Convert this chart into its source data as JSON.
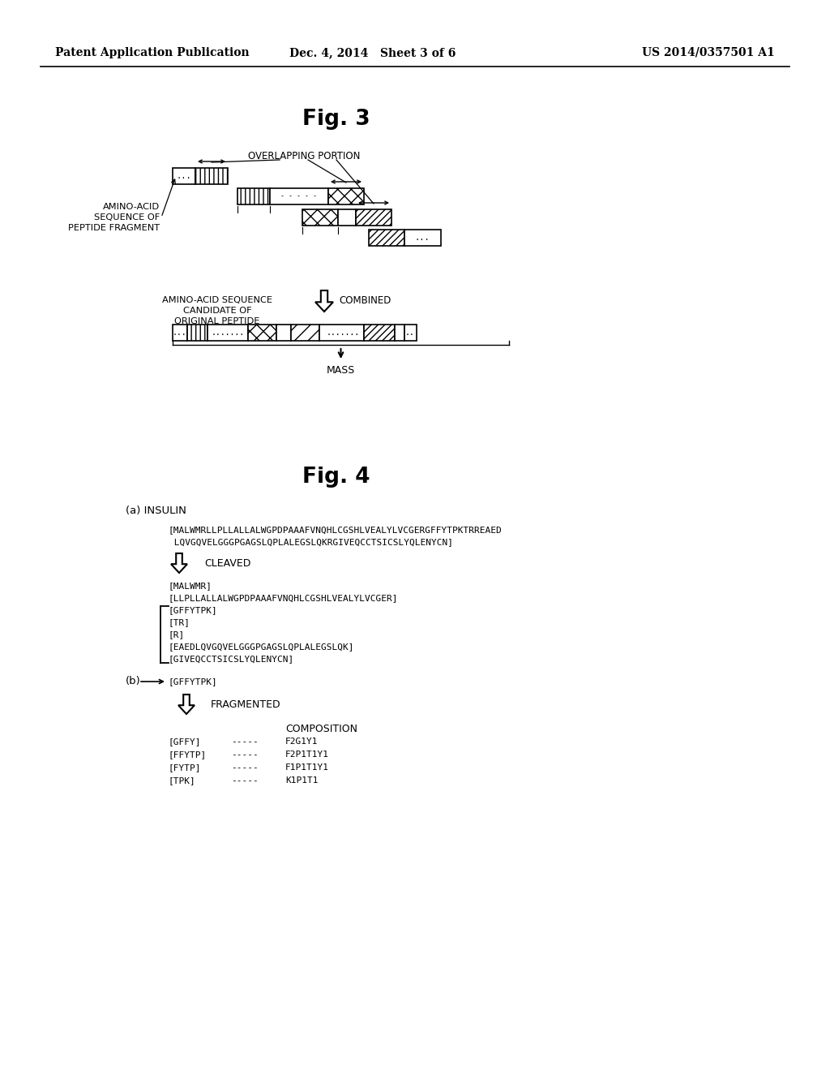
{
  "header_left": "Patent Application Publication",
  "header_mid": "Dec. 4, 2014   Sheet 3 of 6",
  "header_right": "US 2014/0357501 A1",
  "fig3_title": "Fig. 3",
  "fig4_title": "Fig. 4",
  "bg_color": "#ffffff",
  "text_color": "#000000",
  "fig3_overlapping": "OVERLAPPING PORTION",
  "fig3_aa_seq_line1": "AMINO-ACID",
  "fig3_aa_seq_line2": "SEQUENCE OF",
  "fig3_aa_seq_line3": "PEPTIDE FRAGMENT",
  "fig3_candidate_line1": "AMINO-ACID SEQUENCE",
  "fig3_candidate_line2": "CANDIDATE OF",
  "fig3_candidate_line3": "ORIGINAL PEPTIDE",
  "fig3_combined": "COMBINED",
  "fig3_mass": "MASS",
  "fig4a_label": "(a) INSULIN",
  "fig4a_seq1": "[MALWMRLLPLLALLALWGPDPAAAFVNQHLCGSHLVEALYLVCGERGFFYTPKTRREAED",
  "fig4a_seq2": " LQVGQVELGGGPGAGSLQPLALEGSLQKRGIVEQCCTSICSLYQLENYCN]",
  "fig4a_cleaved": "CLEAVED",
  "fig4a_frags": [
    "[MALWMR]",
    "[LLPLLALLALWGPDPAAAFVNQHLCGSHLVEALYLVCGER]",
    "[GFFYTPK]",
    "[TR]",
    "[R]",
    "[EAEDLQVGQVELGGGPGAGSLQPLALEGSLQK]",
    "[GIVEQCCTSICSLYQLENYCN]"
  ],
  "fig4b_label": "(b)",
  "fig4b_frag": "[GFFYTPK]",
  "fig4b_fragmented": "FRAGMENTED",
  "fig4b_composition": "COMPOSITION",
  "fig4b_comp_rows": [
    [
      "[GFFY]",
      "-----",
      "F2G1Y1"
    ],
    [
      "[FFYTP]",
      "-----",
      "F2P1T1Y1"
    ],
    [
      "[FYTP]",
      "-----",
      "F1P1T1Y1"
    ],
    [
      "[TPK]",
      "-----",
      "K1P1T1"
    ]
  ]
}
